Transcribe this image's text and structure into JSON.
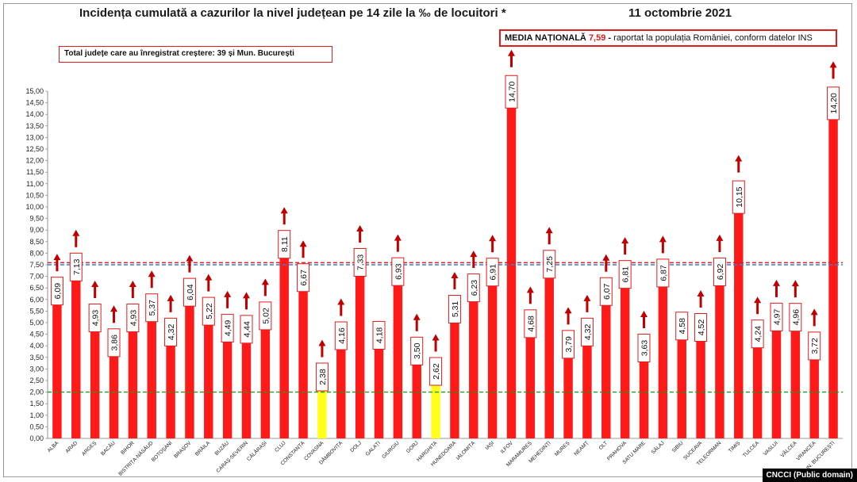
{
  "title": "Incidența cumulată a cazurilor la nivel județean pe 14 zile la ‰ de locuitori *",
  "date": "11 octombrie 2021",
  "national_box": {
    "label": "MEDIA NAȚIONALĂ",
    "value": "7,59",
    "dash": "-",
    "text": "raportat la populația României, conform datelor INS"
  },
  "increase_box": {
    "text": "Total județe care au înregistrat creștere:  39 și Mun. București"
  },
  "credit": "CNCCI (Public domain)",
  "colors": {
    "bar": "#ff1a1a",
    "bar_highlight": "#ffff1a",
    "arrow": "#c00000",
    "national_line": "#e11b1b",
    "reference_line_blue": "#3b7bd8",
    "reference_line_green": "#1f9a1f"
  },
  "chart_data": {
    "type": "bar",
    "ylim": [
      0,
      15
    ],
    "yticks": [
      "0,00",
      "0,50",
      "1,00",
      "1,50",
      "2,00",
      "2,50",
      "3,00",
      "3,50",
      "4,00",
      "4,50",
      "5,00",
      "5,50",
      "6,00",
      "6,50",
      "7,00",
      "7,50",
      "8,00",
      "8,50",
      "9,00",
      "9,50",
      "10,00",
      "10,50",
      "11,00",
      "11,50",
      "12,00",
      "12,50",
      "13,00",
      "13,50",
      "14,00",
      "14,50",
      "15,00"
    ],
    "categories": [
      "ALBA",
      "ARAD",
      "ARGEȘ",
      "BACĂU",
      "BIHOR",
      "BISTRIȚA-NĂSĂUD",
      "BOTOȘANI",
      "BRAȘOV",
      "BRĂILA",
      "BUZĂU",
      "CARAȘ-SEVERIN",
      "CĂLĂRAȘI",
      "CLUJ",
      "CONSTANȚA",
      "COVASNA",
      "DÂMBOVIȚA",
      "DOLJ",
      "GALAȚI",
      "GIURGIU",
      "GORJ",
      "HARGHITA",
      "HUNEDOARA",
      "IALOMIȚA",
      "IAȘI",
      "ILFOV",
      "MARAMUREȘ",
      "MEHEDINȚI",
      "MUREȘ",
      "NEAMȚ",
      "OLT",
      "PRAHOVA",
      "SATU MARE",
      "SĂLAJ",
      "SIBIU",
      "SUCEAVA",
      "TELEORMAN",
      "TIMIȘ",
      "TULCEA",
      "VASLUI",
      "VÂLCEA",
      "VRANCEA",
      "MUN. BUCUREȘTI"
    ],
    "values": [
      6.09,
      7.13,
      4.93,
      3.86,
      4.93,
      5.37,
      4.32,
      6.04,
      5.22,
      4.49,
      4.44,
      5.02,
      8.11,
      6.67,
      2.38,
      4.16,
      7.33,
      4.18,
      6.93,
      3.5,
      2.62,
      5.31,
      6.23,
      6.91,
      14.7,
      4.68,
      7.25,
      3.79,
      4.32,
      6.07,
      6.81,
      3.63,
      6.87,
      4.58,
      4.52,
      6.92,
      10.15,
      4.24,
      4.97,
      4.96,
      3.72,
      14.2
    ],
    "value_labels": [
      "6,09",
      "7,13",
      "4,93",
      "3,86",
      "4,93",
      "5,37",
      "4,32",
      "6,04",
      "5,22",
      "4,49",
      "4,44",
      "5,02",
      "8,11",
      "6,67",
      "2,38",
      "4,16",
      "7,33",
      "4,18",
      "6,93",
      "3,50",
      "2,62",
      "5,31",
      "6,23",
      "6,91",
      "14,70",
      "4,68",
      "7,25",
      "3,79",
      "4,32",
      "6,07",
      "6,81",
      "3,63",
      "6,87",
      "4,58",
      "4,52",
      "6,92",
      "10,15",
      "4,24",
      "4,97",
      "4,96",
      "3,72",
      "14,20"
    ],
    "increasing": [
      true,
      true,
      true,
      true,
      true,
      true,
      true,
      true,
      true,
      true,
      true,
      true,
      true,
      true,
      true,
      true,
      true,
      false,
      true,
      true,
      true,
      true,
      true,
      true,
      true,
      true,
      true,
      true,
      true,
      true,
      true,
      true,
      true,
      false,
      true,
      true,
      true,
      true,
      true,
      true,
      true,
      true
    ],
    "highlighted": [
      "COVASNA",
      "HARGHITA"
    ],
    "reference_lines": [
      {
        "value": 7.59,
        "color": "#e11b1b",
        "style": "dashed"
      },
      {
        "value": 7.5,
        "color": "#3b7bd8",
        "style": "dashed"
      },
      {
        "value": 2.0,
        "color": "#1f9a1f",
        "style": "dashed"
      }
    ],
    "grid": false,
    "legend": "none"
  }
}
